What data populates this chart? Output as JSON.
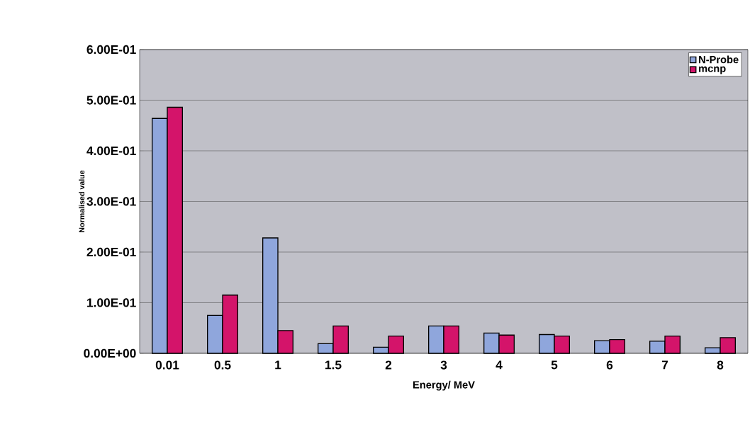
{
  "chart_data": {
    "type": "bar",
    "xlabel": "Energy/ MeV",
    "ylabel": "Normalised value",
    "categories": [
      "0.01",
      "0.5",
      "1",
      "1.5",
      "2",
      "3",
      "4",
      "5",
      "6",
      "7",
      "8"
    ],
    "series": [
      {
        "name": "N-Probe",
        "color": "#8fa6dc",
        "values": [
          0.464,
          0.075,
          0.228,
          0.019,
          0.012,
          0.054,
          0.04,
          0.037,
          0.025,
          0.024,
          0.011
        ]
      },
      {
        "name": "mcnp",
        "color": "#d4146a",
        "values": [
          0.486,
          0.115,
          0.045,
          0.054,
          0.034,
          0.054,
          0.036,
          0.034,
          0.027,
          0.034,
          0.031
        ]
      }
    ],
    "ylim": [
      0,
      0.6
    ],
    "yticks": [
      {
        "value": 0,
        "label": "0.00E+00"
      },
      {
        "value": 0.1,
        "label": "1.00E-01"
      },
      {
        "value": 0.2,
        "label": "2.00E-01"
      },
      {
        "value": 0.3,
        "label": "3.00E-01"
      },
      {
        "value": 0.4,
        "label": "4.00E-01"
      },
      {
        "value": 0.5,
        "label": "5.00E-01"
      },
      {
        "value": 0.6,
        "label": "6.00E-01"
      }
    ],
    "grid": "y",
    "legend": "top right"
  }
}
